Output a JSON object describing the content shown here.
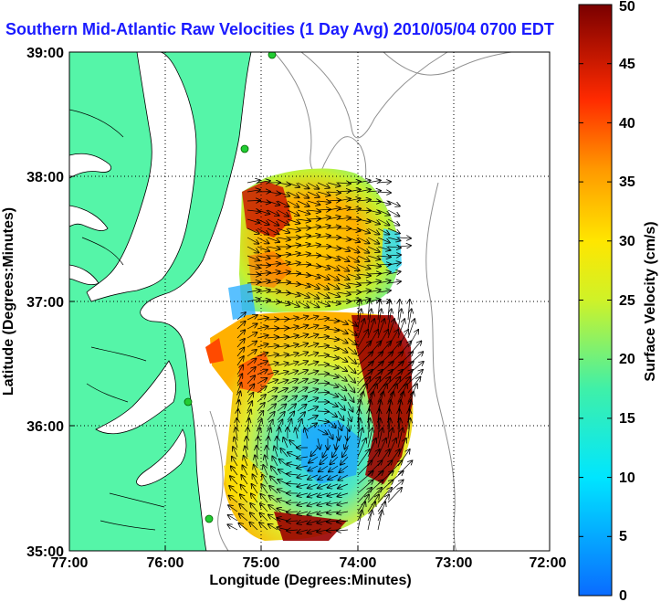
{
  "title": "Southern Mid-Atlantic Raw Velocities (1 Day Avg) 2010/05/04 0700 EDT",
  "xlabel": "Longitude (Degrees:Minutes)",
  "ylabel": "Latitude (Degrees:Minutes)",
  "x_ticks": [
    "77:00",
    "76:00",
    "75:00",
    "74:00",
    "73:00",
    "72:00"
  ],
  "y_ticks": [
    "39:00",
    "38:00",
    "37:00",
    "36:00",
    "35:00"
  ],
  "colorbar": {
    "label": "Surface Velocity (cm/s)",
    "ticks": [
      "0",
      "5",
      "10",
      "15",
      "20",
      "25",
      "30",
      "35",
      "40",
      "45",
      "50"
    ],
    "min": 0,
    "max": 50
  },
  "colors": {
    "land": "#55f5a8",
    "water": "#ffffff",
    "title": "#1a1aff",
    "station": "#22cc33",
    "bathymetry": "#909090"
  }
}
